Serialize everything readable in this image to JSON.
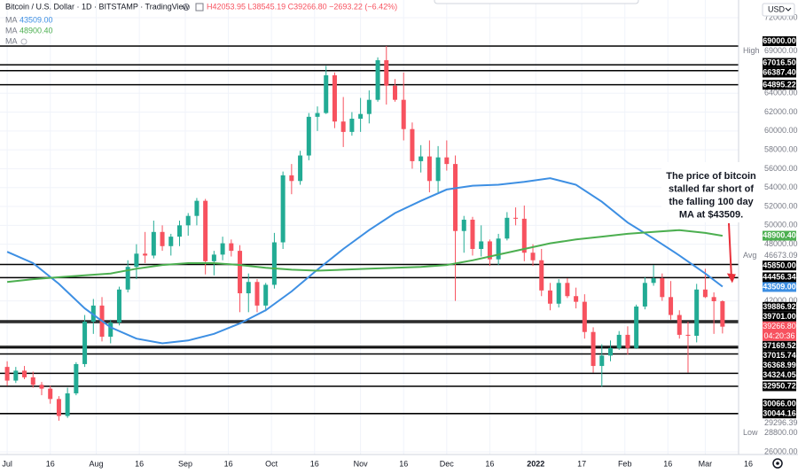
{
  "chart_data": {
    "type": "candlestick",
    "title": "Bitcoin / U.S. Dollar · 1D · BITSTAMP · TradingView",
    "ohlc_legend": "H42053.95 L38545.19 C39266.80 −2693.22 (−6.42%)",
    "currency": "USD",
    "up_color": "#22ab94",
    "down_color": "#f7525f",
    "x": [
      0,
      3,
      6,
      9,
      12,
      15,
      18,
      21,
      24,
      27,
      30,
      33,
      36,
      39,
      42,
      45,
      48,
      51,
      54,
      57,
      60,
      63,
      66,
      69,
      72,
      75,
      78,
      81,
      84,
      87,
      90,
      93,
      96,
      99,
      102,
      105,
      108,
      111,
      114,
      117,
      120,
      123,
      126,
      129,
      132,
      135,
      138,
      141,
      144,
      147,
      150,
      153,
      156,
      159,
      162,
      165,
      168,
      171,
      174,
      177,
      180,
      183,
      186,
      189,
      192,
      195,
      198,
      201,
      204,
      207,
      210,
      213,
      216,
      219,
      222,
      225,
      228,
      231,
      234,
      237,
      240,
      243,
      246,
      249
    ],
    "candles": [
      [
        35000,
        35600,
        33000,
        33550
      ],
      [
        33550,
        35000,
        33300,
        34600
      ],
      [
        34600,
        35100,
        33700,
        33900
      ],
      [
        33900,
        34500,
        32800,
        33100
      ],
      [
        33100,
        33400,
        32000,
        32700
      ],
      [
        32700,
        33000,
        31100,
        31600
      ],
      [
        31600,
        31900,
        29300,
        29800
      ],
      [
        29800,
        32800,
        29600,
        32200
      ],
      [
        32200,
        35500,
        32000,
        35300
      ],
      [
        35300,
        40500,
        35000,
        39800
      ],
      [
        39800,
        42200,
        38500,
        41500
      ],
      [
        41500,
        42400,
        37700,
        38200
      ],
      [
        38200,
        40000,
        37500,
        39700
      ],
      [
        39700,
        43500,
        39400,
        43200
      ],
      [
        43200,
        46300,
        42900,
        45600
      ],
      [
        45600,
        48000,
        44300,
        47000
      ],
      [
        47000,
        49300,
        46000,
        46800
      ],
      [
        46800,
        50500,
        46500,
        49300
      ],
      [
        49300,
        50000,
        47300,
        47800
      ],
      [
        47800,
        49100,
        46800,
        48800
      ],
      [
        48800,
        50500,
        47800,
        50000
      ],
      [
        50000,
        51300,
        48900,
        51000
      ],
      [
        51000,
        52900,
        50000,
        52600
      ],
      [
        52600,
        52800,
        44800,
        46200
      ],
      [
        46200,
        47300,
        44700,
        46900
      ],
      [
        46900,
        48800,
        46300,
        48100
      ],
      [
        48100,
        48500,
        46700,
        47300
      ],
      [
        47300,
        47900,
        40800,
        42800
      ],
      [
        42800,
        44900,
        40800,
        44000
      ],
      [
        44000,
        44300,
        40800,
        41500
      ],
      [
        41500,
        43900,
        40900,
        43700
      ],
      [
        43700,
        49200,
        43300,
        48200
      ],
      [
        48200,
        55700,
        47500,
        55300
      ],
      [
        55300,
        56500,
        53300,
        54700
      ],
      [
        54700,
        57900,
        54300,
        57400
      ],
      [
        57400,
        61900,
        56900,
        61500
      ],
      [
        61500,
        62600,
        60000,
        61900
      ],
      [
        61900,
        66900,
        61800,
        65900
      ],
      [
        65900,
        66200,
        60300,
        61000
      ],
      [
        61000,
        63600,
        58300,
        59900
      ],
      [
        59900,
        62000,
        59500,
        61300
      ],
      [
        61300,
        63500,
        59900,
        61800
      ],
      [
        61800,
        64300,
        60800,
        63300
      ],
      [
        63300,
        67800,
        63100,
        67500
      ],
      [
        67500,
        69000,
        62800,
        64800
      ],
      [
        64800,
        65500,
        63100,
        63300
      ],
      [
        63300,
        66200,
        59000,
        60200
      ],
      [
        60200,
        60900,
        56000,
        56800
      ],
      [
        56800,
        58500,
        55600,
        57300
      ],
      [
        57300,
        59000,
        53500,
        54700
      ],
      [
        54700,
        58400,
        53500,
        57200
      ],
      [
        57200,
        59000,
        55800,
        56500
      ],
      [
        56500,
        57400,
        42000,
        49400
      ],
      [
        49400,
        51000,
        47100,
        50600
      ],
      [
        50600,
        50900,
        46800,
        47500
      ],
      [
        47500,
        50000,
        46700,
        48300
      ],
      [
        48300,
        48500,
        45700,
        46400
      ],
      [
        46400,
        49100,
        45800,
        48600
      ],
      [
        48600,
        51400,
        48400,
        50800
      ],
      [
        50800,
        51900,
        50000,
        50700
      ],
      [
        50700,
        52100,
        46200,
        47100
      ],
      [
        47100,
        48000,
        45700,
        46300
      ],
      [
        46300,
        47500,
        42500,
        43100
      ],
      [
        43100,
        43900,
        41000,
        41700
      ],
      [
        41700,
        44300,
        41300,
        43900
      ],
      [
        43900,
        44400,
        42300,
        42500
      ],
      [
        42500,
        43400,
        41200,
        41900
      ],
      [
        41900,
        42700,
        38000,
        38700
      ],
      [
        38700,
        39200,
        34400,
        35100
      ],
      [
        35100,
        37400,
        32900,
        36200
      ],
      [
        36200,
        37800,
        35600,
        37000
      ],
      [
        37000,
        38800,
        36800,
        38400
      ],
      [
        38400,
        39300,
        36300,
        37000
      ],
      [
        37000,
        41600,
        36900,
        41400
      ],
      [
        41400,
        44500,
        41100,
        43900
      ],
      [
        43900,
        45800,
        43600,
        44400
      ],
      [
        44400,
        44900,
        42000,
        42400
      ],
      [
        42400,
        44100,
        40000,
        40500
      ],
      [
        40500,
        41000,
        38000,
        38400
      ],
      [
        38400,
        39800,
        34400,
        38300
      ],
      [
        38300,
        43800,
        37600,
        43200
      ],
      [
        43200,
        45400,
        42300,
        42400
      ],
      [
        42400,
        42900,
        38500,
        41960
      ],
      [
        41960,
        42053.95,
        38545.19,
        39266.8
      ]
    ],
    "xlim": [
      -2.5,
      254.6
    ],
    "xticks": [
      {
        "value": 0,
        "label": "Jul"
      },
      {
        "value": 15,
        "label": "16"
      },
      {
        "value": 31,
        "label": "Aug"
      },
      {
        "value": 46,
        "label": "16"
      },
      {
        "value": 62,
        "label": "Sep"
      },
      {
        "value": 77,
        "label": "16"
      },
      {
        "value": 92,
        "label": "Oct"
      },
      {
        "value": 107,
        "label": "16"
      },
      {
        "value": 123,
        "label": "Nov"
      },
      {
        "value": 138,
        "label": "16"
      },
      {
        "value": 153,
        "label": "Dec"
      },
      {
        "value": 168,
        "label": "16"
      },
      {
        "value": 184,
        "label": "2022"
      },
      {
        "value": 200,
        "label": "17"
      },
      {
        "value": 215,
        "label": "Feb"
      },
      {
        "value": 230,
        "label": "16"
      },
      {
        "value": 243,
        "label": "Mar"
      },
      {
        "value": 258,
        "label": "16"
      }
    ],
    "ylim": [
      26000,
      72000
    ],
    "yticks": [
      {
        "value": 72000,
        "label": "72000.00"
      },
      {
        "value": 64000,
        "label": "64000.00"
      },
      {
        "value": 62000,
        "label": "62000.00"
      },
      {
        "value": 60000,
        "label": "60000.00"
      },
      {
        "value": 58000,
        "label": "58000.00"
      },
      {
        "value": 56000,
        "label": "56000.00"
      },
      {
        "value": 54000,
        "label": "54000.00"
      },
      {
        "value": 52000,
        "label": "52000.00"
      },
      {
        "value": 50000,
        "label": "50000.00"
      },
      {
        "value": 48000,
        "label": "48000.00"
      },
      {
        "value": 42000,
        "label": "42000.00"
      },
      {
        "value": 26000,
        "label": "26000.00"
      }
    ],
    "grid": true,
    "moving_averages": [
      {
        "name": "MA",
        "color": "#3d8fe3",
        "last_label": "43509.00",
        "x": [
          0,
          9,
          18,
          27,
          36,
          45,
          54,
          63,
          72,
          81,
          90,
          99,
          108,
          117,
          126,
          135,
          144,
          153,
          162,
          171,
          180,
          189,
          198,
          207,
          216,
          225,
          234,
          243,
          249
        ],
        "values": [
          47200,
          46000,
          43800,
          41200,
          39200,
          38000,
          37500,
          37800,
          38500,
          39600,
          41000,
          43000,
          45300,
          47500,
          49500,
          51300,
          52600,
          53800,
          54200,
          54300,
          54600,
          55000,
          54300,
          52500,
          50300,
          48600,
          46800,
          44900,
          43509
        ]
      },
      {
        "name": "MA",
        "color": "#4caf50",
        "last_label": "48900.40",
        "x": [
          0,
          9,
          18,
          27,
          36,
          45,
          54,
          63,
          72,
          81,
          90,
          99,
          108,
          117,
          126,
          135,
          144,
          153,
          162,
          171,
          180,
          189,
          198,
          207,
          216,
          225,
          234,
          243,
          249
        ],
        "values": [
          44000,
          44300,
          44500,
          44700,
          44900,
          45400,
          45800,
          46000,
          46000,
          45800,
          45500,
          45300,
          45200,
          45300,
          45400,
          45500,
          45600,
          45800,
          46300,
          46900,
          47500,
          48100,
          48500,
          48800,
          49100,
          49300,
          49500,
          49200,
          48900.4
        ]
      },
      {
        "name": "MA",
        "color": "#b2b5be"
      }
    ],
    "levels": [
      {
        "value": 69000,
        "label": "69000.00"
      },
      {
        "value": 67016.5,
        "label": "67016.50"
      },
      {
        "value": 66387.4,
        "label": "66387.40"
      },
      {
        "value": 64895.22,
        "label": "64895.22"
      },
      {
        "value": 45850,
        "label": "45850.00"
      },
      {
        "value": 44456.34,
        "label": "44456.34"
      },
      {
        "value": 39886.92,
        "label": "39886.92"
      },
      {
        "value": 39701,
        "label": "39701.00"
      },
      {
        "value": 37169.52,
        "label": "37169.52"
      },
      {
        "value": 37015.74,
        "label": "37015.74"
      },
      {
        "value": 36368.99,
        "label": "36368.99"
      },
      {
        "value": 34324.05,
        "label": "34324.05"
      },
      {
        "value": 32950.72,
        "label": "32950.72"
      },
      {
        "value": 30066,
        "label": "30066.00"
      },
      {
        "value": 30044.16,
        "label": "30044.16"
      }
    ],
    "price_stats": [
      {
        "name": "High",
        "value": 69000,
        "label": "69000.00"
      },
      {
        "name": "Avg",
        "value": 46673.09,
        "label": "46673.09"
      },
      {
        "name": "Low",
        "value": 28800,
        "label": "28800.00"
      }
    ],
    "extra_price_labels": [
      {
        "value": 29296.39,
        "label": "29296.39"
      }
    ],
    "last_price": {
      "value": 39266.8,
      "label": "39266.80",
      "countdown": "04:20:36",
      "color": "#f7525f"
    },
    "annotation": {
      "lines": [
        "The price of bitcoin",
        "stalled far short of",
        "the falling 100 day",
        "MA at $43509."
      ],
      "arrow_color": "#e8303a"
    }
  }
}
